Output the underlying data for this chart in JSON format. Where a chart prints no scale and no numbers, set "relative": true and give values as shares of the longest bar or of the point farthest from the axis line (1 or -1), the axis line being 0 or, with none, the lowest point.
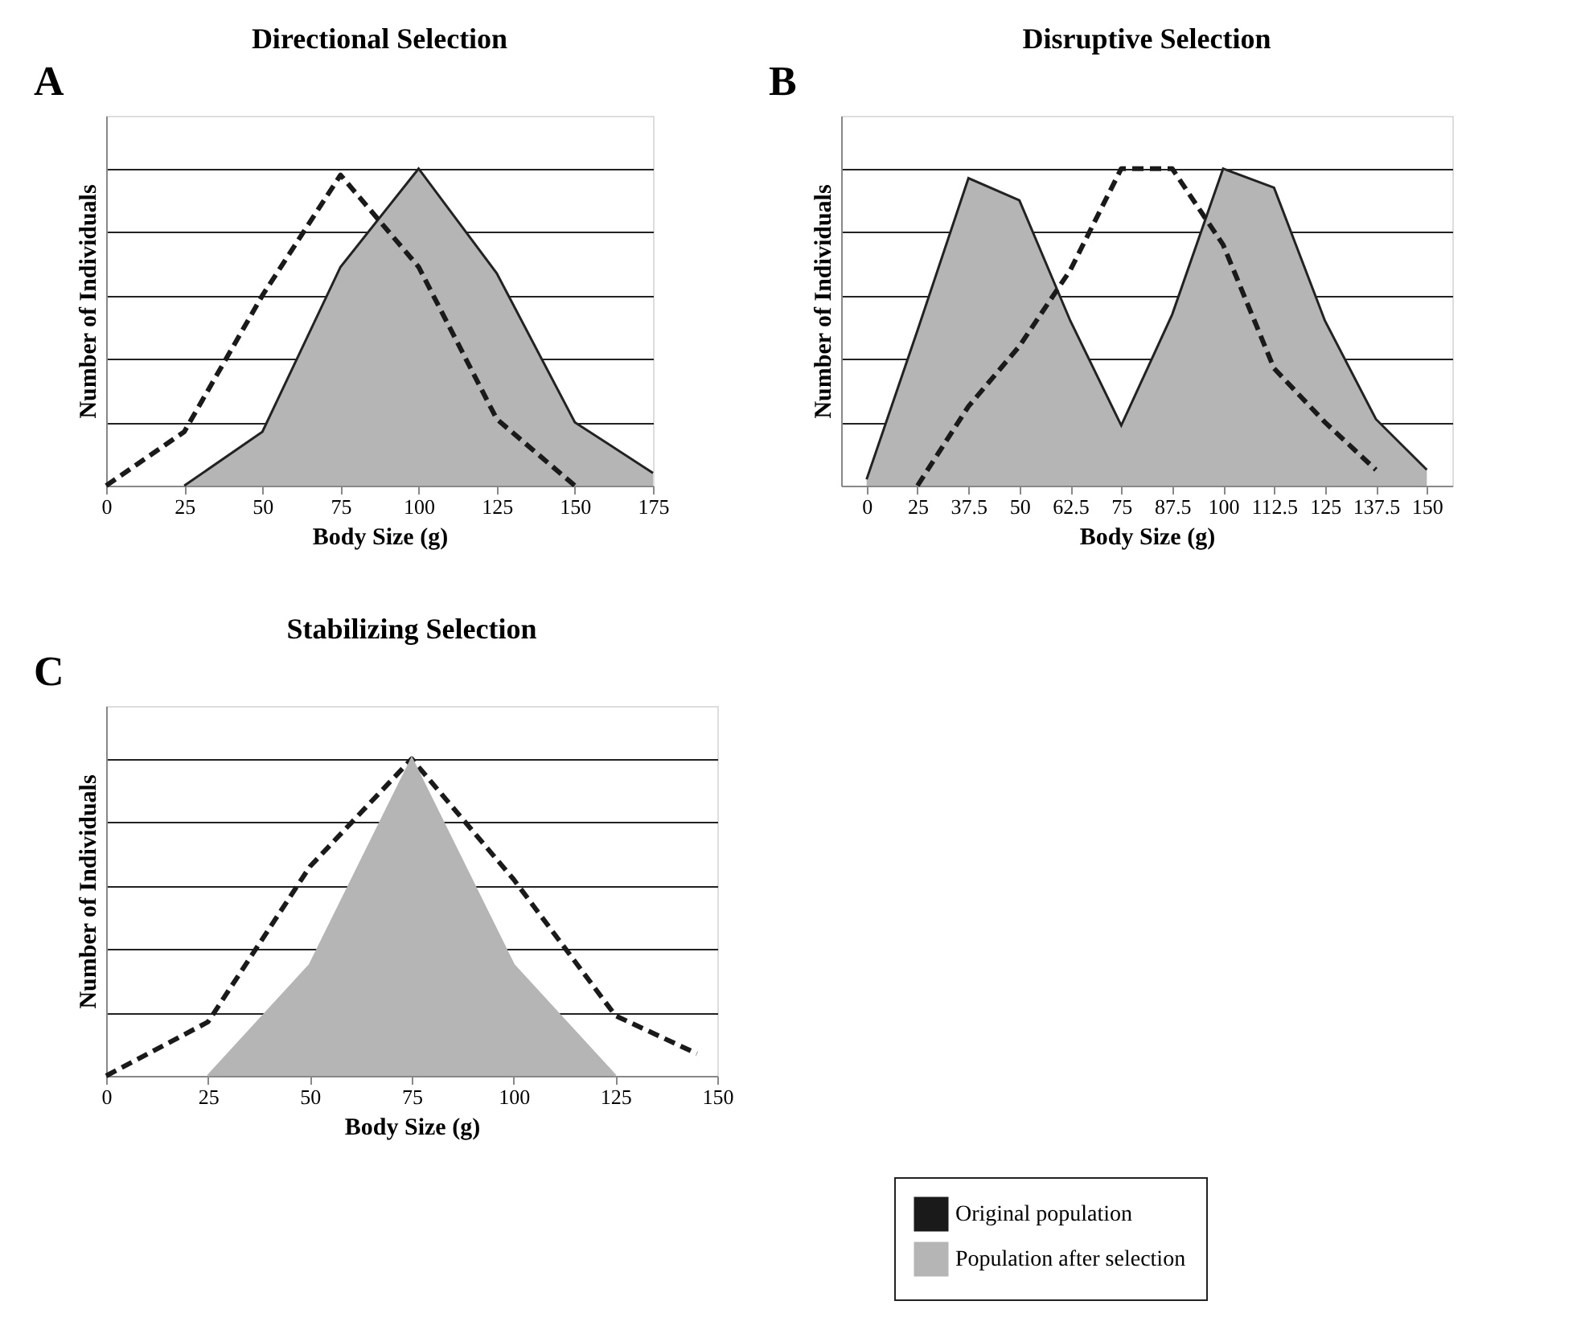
{
  "chart_data": [
    {
      "type": "area",
      "title": "Directional Selection",
      "xlabel": "Body Size (g)",
      "ylabel": "Number of Individuals",
      "annotations": [
        "A"
      ],
      "relative": true,
      "grid": "y",
      "legend": false,
      "xlim": [
        0,
        175
      ],
      "xticks": [
        0,
        25,
        50,
        75,
        100,
        125,
        150,
        175
      ],
      "series": [
        {
          "color": "#b5b5b5",
          "x": [
            25,
            50,
            75,
            100,
            125,
            150,
            175
          ],
          "values": [
            0,
            0.17,
            0.69,
            1,
            0.67,
            0.2,
            0.04
          ]
        },
        {
          "type": "line",
          "line_style": "dashed",
          "color": "#1a1a1a",
          "x": [
            0,
            25,
            50,
            75,
            100,
            125,
            150
          ],
          "values": [
            0,
            0.17,
            0.6,
            0.98,
            0.69,
            0.21,
            0
          ]
        }
      ]
    },
    {
      "type": "area",
      "title": "Disruptive Selection",
      "xlabel": "Body Size (g)",
      "ylabel": "Number of Individuals",
      "annotations": [
        "B"
      ],
      "relative": true,
      "grid": "y",
      "legend": false,
      "categories": [
        "0",
        "25",
        "37.5",
        "50",
        "62.5",
        "75",
        "87.5",
        "100",
        "112.5",
        "125",
        "137.5",
        "150"
      ],
      "series": [
        {
          "color": "#b5b5b5",
          "values": [
            0.02,
            0.49,
            0.97,
            0.9,
            0.52,
            0.19,
            0.54,
            1,
            0.94,
            0.52,
            0.21,
            0.05
          ]
        },
        {
          "type": "line",
          "line_style": "dashed",
          "color": "#1a1a1a",
          "values": [
            null,
            0,
            0.25,
            0.44,
            0.68,
            1,
            1,
            0.76,
            0.37,
            0.2,
            0.05,
            null
          ]
        }
      ]
    },
    {
      "type": "area",
      "title": "Stabilizing Selection",
      "xlabel": "Body Size (g)",
      "ylabel": "Number of Individuals",
      "annotations": [
        "C"
      ],
      "relative": true,
      "grid": "y",
      "legend": "right",
      "xlim": [
        0,
        150
      ],
      "xticks": [
        0,
        25,
        50,
        75,
        100,
        125,
        150
      ],
      "series": [
        {
          "type": "line",
          "line_style": "dashed",
          "name": "Original population",
          "color": "#1a1a1a",
          "x": [
            0,
            25,
            50,
            75,
            100,
            125,
            145
          ],
          "values": [
            0,
            0.17,
            0.66,
            1,
            0.62,
            0.19,
            0.07
          ]
        },
        {
          "name": "Population after selection",
          "color": "#b5b5b5",
          "x": [
            25,
            50,
            75,
            100,
            125
          ],
          "values": [
            0,
            0.35,
            1,
            0.35,
            0
          ]
        }
      ]
    }
  ]
}
